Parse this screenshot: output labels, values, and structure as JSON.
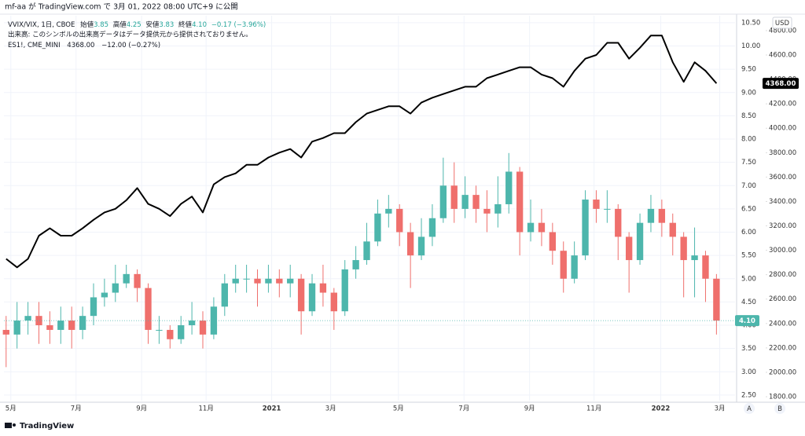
{
  "header": {
    "publisher": "mf-aa が TradingView.com で 3月 01, 2022 08:00 UTC+9 に公開"
  },
  "footer": {
    "brand": "TradingView",
    "buttons": [
      "A",
      "B"
    ]
  },
  "chart_data": {
    "type": "candlestick",
    "legend": {
      "items": [
        {
          "label": "始値",
          "value": "3.85"
        },
        {
          "label": "高値",
          "value": "4.25"
        },
        {
          "label": "安値",
          "value": "3.83"
        },
        {
          "label": "終値",
          "value": "4.10"
        }
      ],
      "change": "−0.17 (−3.96%)",
      "volume_note": "出来高: このシンボルの出来高データはデータ提供元から提供されておりません。",
      "es_price": "4368.00",
      "es_change": "−12.00 (−0.27%)"
    },
    "y2_unit": "USD",
    "categories": [
      null,
      null,
      null,
      null,
      null,
      null,
      null,
      null,
      null,
      null,
      null,
      null,
      null,
      null,
      null,
      null,
      null,
      null,
      null,
      null,
      null,
      null,
      null,
      null,
      null,
      null,
      null,
      null,
      null,
      null,
      null,
      null,
      null,
      null,
      null,
      null,
      null,
      null,
      null,
      null,
      null,
      null,
      null,
      null,
      null,
      null,
      null,
      null,
      null,
      null,
      null,
      null,
      null,
      null,
      null,
      null,
      null,
      null,
      null,
      null,
      null,
      null,
      null,
      null,
      null,
      null
    ],
    "xlim": [
      -0.2,
      66.7
    ],
    "xticks": [
      {
        "value": 0.43,
        "label": "5月"
      },
      {
        "value": 6.4,
        "label": "7月"
      },
      {
        "value": 12.4,
        "label": "9月"
      },
      {
        "value": 18.3,
        "label": "11月"
      },
      {
        "value": 24.3,
        "label": "2021"
      },
      {
        "value": 29.7,
        "label": "3月"
      },
      {
        "value": 35.9,
        "label": "5月"
      },
      {
        "value": 41.9,
        "label": "7月"
      },
      {
        "value": 47.9,
        "label": "9月"
      },
      {
        "value": 53.8,
        "label": "11月"
      },
      {
        "value": 59.9,
        "label": "2022"
      },
      {
        "value": 65.3,
        "label": "3月"
      }
    ],
    "ylim": [
      2.38,
      10.65
    ],
    "yticks": [
      {
        "value": 2.5,
        "label": "2.50"
      },
      {
        "value": 3,
        "label": "3.00"
      },
      {
        "value": 3.5,
        "label": "3.50"
      },
      {
        "value": 4,
        "label": "4.00"
      },
      {
        "value": 4.5,
        "label": "4.50"
      },
      {
        "value": 5,
        "label": "5.00"
      },
      {
        "value": 5.5,
        "label": "5.50"
      },
      {
        "value": 6,
        "label": "6.00"
      },
      {
        "value": 6.5,
        "label": "6.50"
      },
      {
        "value": 7,
        "label": "7.00"
      },
      {
        "value": 7.5,
        "label": "7.50"
      },
      {
        "value": 8,
        "label": "8.00"
      },
      {
        "value": 8.5,
        "label": "8.50"
      },
      {
        "value": 9,
        "label": "9.00"
      },
      {
        "value": 9.5,
        "label": "9.50"
      },
      {
        "value": 10,
        "label": "10.00"
      },
      {
        "value": 10.5,
        "label": "10.50"
      }
    ],
    "y2lim": [
      1768,
      4922
    ],
    "y2ticks": [
      {
        "value": 1800,
        "label": "1800.00"
      },
      {
        "value": 2000,
        "label": "2000.00"
      },
      {
        "value": 2200,
        "label": "2200.00"
      },
      {
        "value": 2400,
        "label": "2400.00"
      },
      {
        "value": 2600,
        "label": "2600.00"
      },
      {
        "value": 2800,
        "label": "2800.00"
      },
      {
        "value": 3000,
        "label": "3000.00"
      },
      {
        "value": 3200,
        "label": "3200.00"
      },
      {
        "value": 3400,
        "label": "3400.00"
      },
      {
        "value": 3600,
        "label": "3600.00"
      },
      {
        "value": 3800,
        "label": "3800.00"
      },
      {
        "value": 4000,
        "label": "4000.00"
      },
      {
        "value": 4200,
        "label": "4200.00"
      },
      {
        "value": 4400,
        "label": "4400.00"
      },
      {
        "value": 4600,
        "label": "4600.00"
      },
      {
        "value": 4800,
        "label": "4800.00"
      }
    ],
    "grid": true,
    "series": [
      {
        "name": "VVIX/VIX, 1日, CBOE",
        "type": "candlestick",
        "up_color": "#4db6ac",
        "down_color": "#ef6f6c",
        "last_value_label": "4.10",
        "open": [
          3.9,
          3.8,
          4.1,
          4.2,
          4.0,
          3.9,
          4.1,
          3.9,
          4.2,
          4.6,
          4.7,
          4.9,
          5.1,
          4.8,
          3.9,
          3.9,
          3.7,
          4.0,
          4.1,
          3.8,
          4.4,
          4.9,
          5.0,
          5.0,
          4.9,
          5.0,
          4.9,
          5.0,
          4.3,
          4.9,
          4.7,
          4.3,
          5.2,
          5.4,
          5.8,
          6.4,
          6.5,
          6.0,
          5.5,
          5.9,
          6.3,
          7.0,
          6.5,
          6.8,
          6.5,
          6.4,
          6.6,
          7.3,
          6.0,
          6.2,
          6.0,
          5.6,
          5.0,
          5.5,
          6.7,
          6.5,
          6.5,
          5.9,
          5.4,
          6.2,
          6.5,
          6.2,
          5.9,
          5.4,
          5.5,
          5.0
        ],
        "high": [
          4.2,
          4.5,
          4.5,
          4.5,
          4.3,
          4.4,
          4.4,
          4.4,
          4.9,
          5.0,
          5.3,
          5.3,
          5.2,
          4.9,
          4.2,
          4.0,
          4.2,
          4.5,
          4.3,
          4.6,
          5.1,
          5.3,
          5.3,
          5.2,
          5.3,
          5.2,
          5.3,
          5.1,
          5.1,
          5.3,
          4.8,
          5.4,
          5.7,
          6.2,
          6.7,
          6.8,
          6.6,
          6.2,
          6.3,
          6.6,
          7.6,
          7.5,
          7.2,
          7.0,
          6.9,
          7.2,
          7.7,
          7.4,
          6.7,
          6.5,
          6.2,
          5.8,
          5.8,
          6.9,
          6.9,
          6.9,
          6.6,
          6.0,
          6.4,
          6.8,
          6.7,
          6.4,
          6.0,
          6.1,
          5.6,
          5.1
        ],
        "low": [
          3.1,
          3.5,
          3.8,
          3.6,
          3.6,
          3.6,
          3.5,
          3.7,
          4.0,
          4.4,
          4.5,
          4.8,
          4.5,
          3.6,
          3.6,
          3.5,
          3.6,
          3.8,
          3.5,
          3.7,
          4.2,
          4.7,
          4.7,
          4.4,
          4.7,
          4.6,
          4.6,
          3.8,
          4.2,
          4.4,
          3.9,
          4.2,
          5.0,
          5.3,
          5.7,
          6.1,
          5.7,
          4.8,
          5.4,
          5.7,
          6.2,
          6.2,
          6.3,
          6.2,
          6.0,
          6.1,
          6.4,
          5.5,
          5.8,
          5.7,
          5.3,
          4.7,
          4.9,
          5.4,
          6.2,
          6.2,
          5.4,
          4.7,
          5.3,
          6.0,
          5.9,
          5.5,
          4.6,
          4.6,
          4.5,
          3.8
        ],
        "close": [
          3.8,
          4.1,
          4.2,
          4.0,
          3.9,
          4.1,
          3.9,
          4.2,
          4.6,
          4.7,
          4.9,
          5.1,
          4.8,
          3.9,
          3.9,
          3.7,
          4.0,
          4.1,
          3.8,
          4.4,
          4.9,
          5.0,
          5.0,
          4.9,
          5.0,
          4.9,
          5.0,
          4.3,
          4.9,
          4.7,
          4.3,
          5.2,
          5.4,
          5.8,
          6.4,
          6.5,
          6.0,
          5.5,
          5.9,
          6.3,
          7.0,
          6.5,
          6.8,
          6.5,
          6.4,
          6.6,
          7.3,
          6.0,
          6.2,
          6.0,
          5.6,
          5.0,
          5.5,
          6.7,
          6.5,
          6.5,
          5.9,
          5.4,
          6.2,
          6.5,
          6.2,
          5.9,
          5.4,
          5.5,
          5.0,
          4.1
        ]
      },
      {
        "name": "ES1!, CME_MINI",
        "type": "line",
        "axis": "y2",
        "color": "#000000",
        "last_value_label": "4368.00",
        "values": [
          2930,
          2860,
          2930,
          3120,
          3180,
          3120,
          3120,
          3180,
          3250,
          3310,
          3340,
          3410,
          3510,
          3380,
          3340,
          3280,
          3380,
          3440,
          3310,
          3540,
          3600,
          3630,
          3700,
          3700,
          3760,
          3800,
          3830,
          3760,
          3890,
          3920,
          3960,
          3960,
          4050,
          4120,
          4150,
          4180,
          4180,
          4120,
          4210,
          4250,
          4280,
          4310,
          4340,
          4340,
          4410,
          4440,
          4470,
          4500,
          4500,
          4440,
          4410,
          4340,
          4470,
          4570,
          4600,
          4700,
          4700,
          4570,
          4660,
          4760,
          4760,
          4540,
          4380,
          4540,
          4470,
          4368
        ]
      }
    ]
  }
}
